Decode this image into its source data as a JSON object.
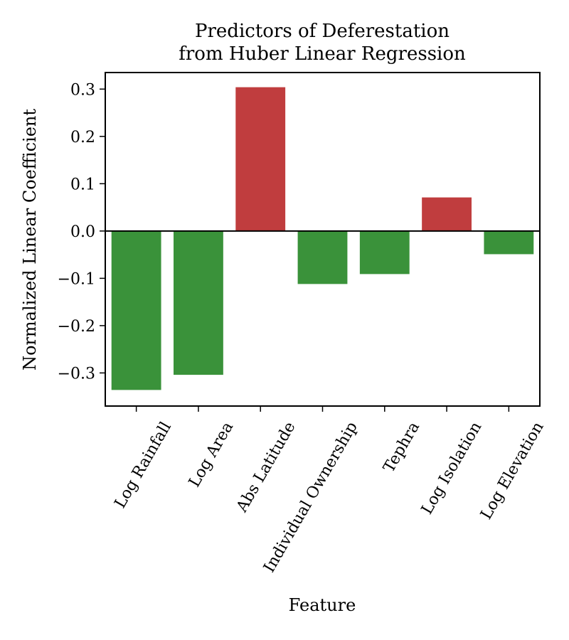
{
  "chart_data": {
    "type": "bar",
    "title": [
      "Predictors of Deferestation",
      "from Huber Linear Regression"
    ],
    "xlabel": "Feature",
    "ylabel": "Normalized Linear Coefficient",
    "categories": [
      "Log Rainfall",
      "Log Area",
      "Abs Latitude",
      "Individual Ownership",
      "Tephra",
      "Log Isolation",
      "Log Elevation"
    ],
    "values": [
      -0.336,
      -0.304,
      0.304,
      -0.112,
      -0.091,
      0.071,
      -0.049
    ],
    "ylim": [
      -0.37,
      0.335
    ],
    "yticks": [
      -0.3,
      -0.2,
      -0.1,
      0.0,
      0.1,
      0.2,
      0.3
    ],
    "ytick_labels": [
      "−0.3",
      "−0.2",
      "−0.1",
      "0.0",
      "0.1",
      "0.2",
      "0.3"
    ],
    "colors": {
      "positive": "#c03d3e",
      "negative": "#3a923a"
    },
    "zero_line": true,
    "grid": false
  }
}
